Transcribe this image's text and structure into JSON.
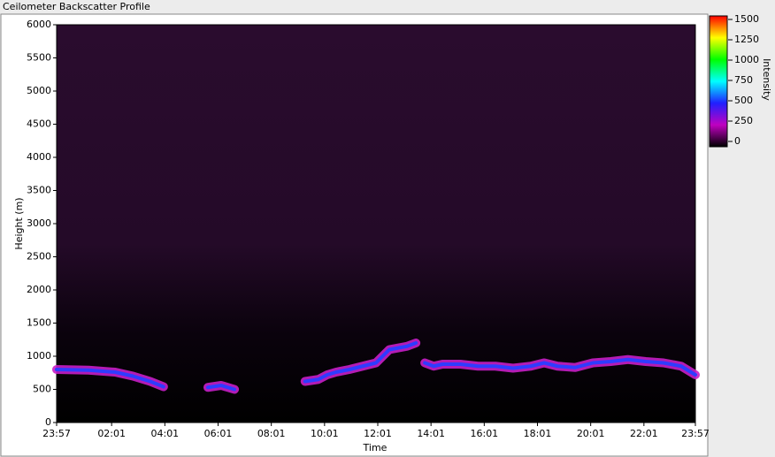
{
  "window_title": "Ceilometer Backscatter Profile",
  "chart_data": {
    "type": "line",
    "xlabel": "Time",
    "ylabel": "Height (m)",
    "xlim": [
      0,
      1440
    ],
    "xticks": [
      {
        "value": 0,
        "label": "23:57"
      },
      {
        "value": 124,
        "label": "02:01"
      },
      {
        "value": 244,
        "label": "04:01"
      },
      {
        "value": 364,
        "label": "06:01"
      },
      {
        "value": 484,
        "label": "08:01"
      },
      {
        "value": 604,
        "label": "10:01"
      },
      {
        "value": 724,
        "label": "12:01"
      },
      {
        "value": 844,
        "label": "14:01"
      },
      {
        "value": 964,
        "label": "16:01"
      },
      {
        "value": 1084,
        "label": "18:01"
      },
      {
        "value": 1204,
        "label": "20:01"
      },
      {
        "value": 1324,
        "label": "22:01"
      },
      {
        "value": 1440,
        "label": "23:57"
      }
    ],
    "ylim": [
      0,
      6000
    ],
    "yticks": [
      0,
      500,
      1000,
      1500,
      2000,
      2500,
      3000,
      3500,
      4000,
      4500,
      5000,
      5500,
      6000
    ],
    "x": [
      0,
      72,
      132,
      172,
      211,
      241,
      290,
      341,
      371,
      401,
      480,
      560,
      590,
      610,
      630,
      660,
      690,
      720,
      750,
      790,
      810,
      820,
      830,
      850,
      870,
      910,
      950,
      989,
      1029,
      1069,
      1099,
      1129,
      1169,
      1209,
      1249,
      1288,
      1328,
      1368,
      1408,
      1440
    ],
    "series": [
      {
        "color": "#2f3cff",
        "values": [
          800,
          790,
          760,
          700,
          620,
          540,
          null,
          530,
          560,
          500,
          null,
          620,
          650,
          720,
          760,
          800,
          850,
          900,
          1100,
          1150,
          1200,
          null,
          900,
          850,
          880,
          880,
          850,
          850,
          820,
          850,
          900,
          850,
          830,
          900,
          920,
          950,
          920,
          900,
          850,
          720
        ]
      }
    ],
    "colorbar": {
      "label": "Intensity",
      "lim": [
        0,
        1500
      ],
      "ticks": [
        0,
        250,
        500,
        750,
        1000,
        1250,
        1500
      ],
      "colors": [
        "#000000",
        "#c000c0",
        "#2020ff",
        "#00ffff",
        "#00ff00",
        "#ffff00",
        "#ff0000"
      ]
    }
  }
}
